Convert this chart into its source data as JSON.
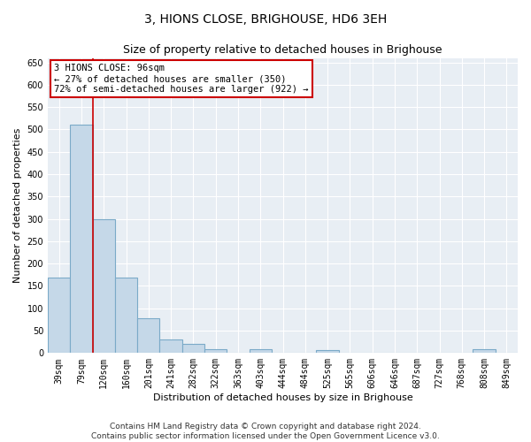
{
  "title": "3, HIONS CLOSE, BRIGHOUSE, HD6 3EH",
  "subtitle": "Size of property relative to detached houses in Brighouse",
  "xlabel": "Distribution of detached houses by size in Brighouse",
  "ylabel": "Number of detached properties",
  "categories": [
    "39sqm",
    "79sqm",
    "120sqm",
    "160sqm",
    "201sqm",
    "241sqm",
    "282sqm",
    "322sqm",
    "363sqm",
    "403sqm",
    "444sqm",
    "484sqm",
    "525sqm",
    "565sqm",
    "606sqm",
    "646sqm",
    "687sqm",
    "727sqm",
    "768sqm",
    "808sqm",
    "849sqm"
  ],
  "values": [
    168,
    510,
    300,
    168,
    78,
    30,
    20,
    8,
    0,
    8,
    0,
    0,
    7,
    0,
    0,
    0,
    0,
    0,
    0,
    8,
    0
  ],
  "bar_color": "#c5d8e8",
  "bar_edgecolor": "#7baac8",
  "vline_color": "#cc0000",
  "vline_x_index": 1.5,
  "annotation_text": "3 HIONS CLOSE: 96sqm\n← 27% of detached houses are smaller (350)\n72% of semi-detached houses are larger (922) →",
  "annotation_box_facecolor": "#ffffff",
  "annotation_box_edgecolor": "#cc0000",
  "ylim": [
    0,
    660
  ],
  "yticks": [
    0,
    50,
    100,
    150,
    200,
    250,
    300,
    350,
    400,
    450,
    500,
    550,
    600,
    650
  ],
  "background_color": "#e8eef4",
  "grid_color": "#ffffff",
  "footer": "Contains HM Land Registry data © Crown copyright and database right 2024.\nContains public sector information licensed under the Open Government Licence v3.0.",
  "title_fontsize": 10,
  "subtitle_fontsize": 9,
  "ylabel_fontsize": 8,
  "xlabel_fontsize": 8,
  "tick_fontsize": 7,
  "annotation_fontsize": 7.5,
  "footer_fontsize": 6.5
}
